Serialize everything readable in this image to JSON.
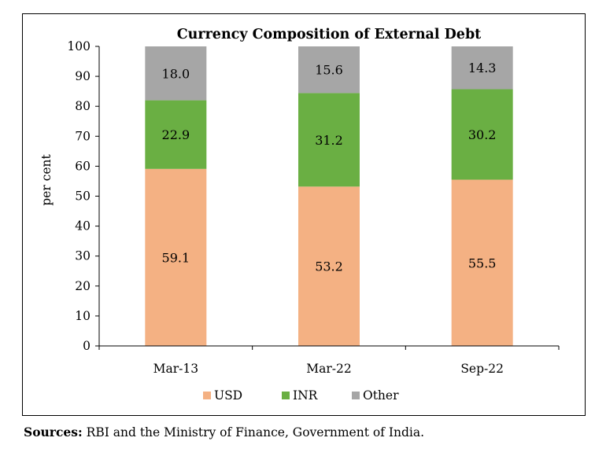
{
  "chart_data": {
    "type": "bar",
    "stacked": true,
    "title": "Currency Composition of External Debt",
    "xlabel": "",
    "ylabel": "per cent",
    "ylim": [
      0,
      100
    ],
    "yticks": [
      0,
      10,
      20,
      30,
      40,
      50,
      60,
      70,
      80,
      90,
      100
    ],
    "categories": [
      "Mar-13",
      "Mar-22",
      "Sep-22"
    ],
    "series": [
      {
        "name": "USD",
        "values": [
          59.1,
          53.2,
          55.5
        ],
        "color": "#f4b183"
      },
      {
        "name": "INR",
        "values": [
          22.9,
          31.2,
          30.2
        ],
        "color": "#6aaf43"
      },
      {
        "name": "Other",
        "values": [
          18.0,
          15.6,
          14.3
        ],
        "color": "#a6a6a6"
      }
    ],
    "data_labels": [
      [
        "59.1",
        "53.2",
        "55.5"
      ],
      [
        "22.9",
        "31.2",
        "30.2"
      ],
      [
        "18.0",
        "15.6",
        "14.3"
      ]
    ],
    "legend_position": "bottom",
    "grid": false
  },
  "footer": {
    "sources_label": "Sources:",
    "sources_text": " RBI and the Ministry of Finance, Government of India."
  }
}
